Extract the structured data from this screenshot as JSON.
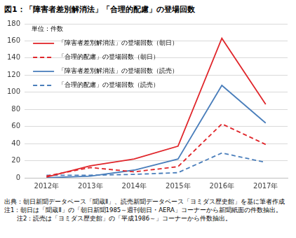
{
  "chart_data": {
    "type": "line",
    "title": "図1：「障害者差別解消法」「合理的配慮」の登場回数",
    "annotations": [
      "単位：件数"
    ],
    "categories": [
      "2012年",
      "2013年",
      "2014年",
      "2015年",
      "2016年",
      "2017年"
    ],
    "series": [
      {
        "name": "「障害者差別解消法」の登場回数（朝日）",
        "color": "#e0262b",
        "line_style": "solid",
        "values": [
          1,
          14,
          22,
          37,
          163,
          86
        ]
      },
      {
        "name": "「合理的配慮」の登場回数（朝日）",
        "color": "#e0262b",
        "line_style": "dashed",
        "values": [
          2,
          12,
          7,
          13,
          63,
          39
        ]
      },
      {
        "name": "「障害者差別解消法」の登場回数（読売）",
        "color": "#4a7ebb",
        "line_style": "solid",
        "values": [
          0,
          2,
          9,
          22,
          108,
          64
        ]
      },
      {
        "name": "「合理的配慮」の登場回数（読売）",
        "color": "#4a7ebb",
        "line_style": "dashed",
        "values": [
          3,
          3,
          4,
          6,
          29,
          18
        ]
      }
    ],
    "ylim": [
      0,
      180
    ],
    "yticks": [
      0,
      20,
      40,
      60,
      80,
      100,
      120,
      140,
      160,
      180
    ],
    "grid": true,
    "legend": "upper left",
    "marker": "none",
    "source": "出典：朝日新聞データベース「聞蔵Ⅱ」、読売新聞データベース「ヨミダス歴史館」を基に筆者作成",
    "notes": [
      "注1：朝日は「聞蔵Ⅱ」の「朝日新聞1985～週刊朝日・AERA」コーナーから新聞紙面の件数抽出。",
      "注2：読売は「ヨミダス歴史館」の「平成1986～」コーナーから件数抽出。"
    ]
  }
}
